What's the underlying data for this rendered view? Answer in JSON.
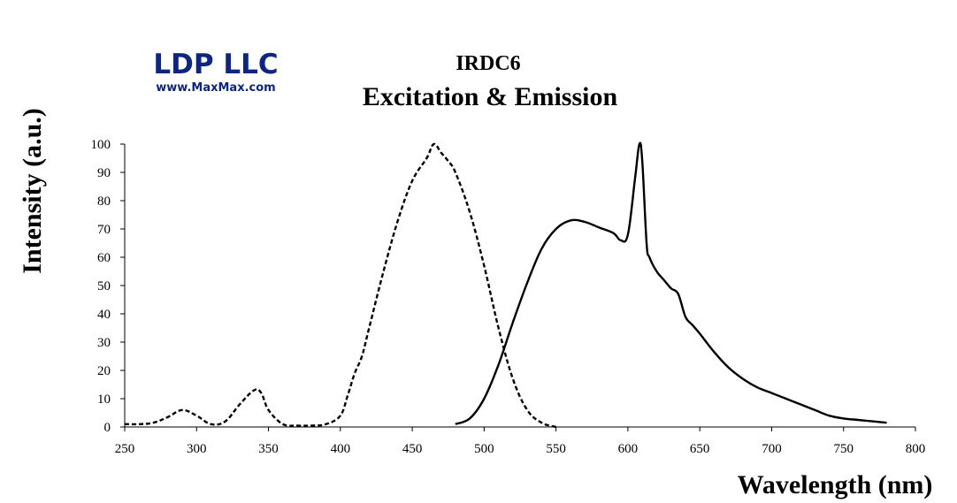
{
  "logo": {
    "name": "LDP LLC",
    "url": "www.MaxMax.com"
  },
  "colors": {
    "brand": "#0d2680",
    "line": "#000000"
  },
  "chart_data": {
    "type": "line",
    "title": "IRDC6",
    "subtitle": "Excitation & Emission",
    "xlabel": "Wavelength (nm)",
    "ylabel": "Intensity (a.u.)",
    "xlim": [
      250,
      800
    ],
    "ylim": [
      0,
      100
    ],
    "xticks": [
      250,
      300,
      350,
      400,
      450,
      500,
      550,
      600,
      650,
      700,
      750,
      800
    ],
    "yticks": [
      0,
      10,
      20,
      30,
      40,
      50,
      60,
      70,
      80,
      90,
      100
    ],
    "grid": false,
    "legend": "none",
    "series": [
      {
        "style": "dashed",
        "x": [
          250,
          260,
          270,
          280,
          290,
          300,
          310,
          320,
          330,
          340,
          345,
          350,
          360,
          370,
          380,
          390,
          400,
          405,
          410,
          415,
          420,
          430,
          440,
          450,
          460,
          465,
          470,
          475,
          480,
          490,
          500,
          510,
          520,
          530,
          540,
          550
        ],
        "y": [
          1,
          1,
          1.5,
          3.5,
          6,
          4,
          1,
          2,
          8,
          13,
          12,
          6,
          1,
          0.5,
          0.5,
          1,
          4,
          11,
          19,
          25,
          35,
          55,
          73,
          87,
          95,
          100,
          97,
          94,
          90,
          76,
          57,
          35,
          17,
          6,
          1.5,
          0
        ]
      },
      {
        "style": "solid",
        "x": [
          480,
          490,
          500,
          510,
          520,
          530,
          540,
          550,
          560,
          570,
          580,
          590,
          595,
          600,
          605,
          608,
          610,
          613,
          615,
          620,
          625,
          630,
          635,
          640,
          645,
          650,
          660,
          670,
          680,
          690,
          700,
          710,
          720,
          730,
          740,
          750,
          760,
          770,
          780
        ],
        "y": [
          1,
          3,
          10,
          22,
          37,
          51,
          63,
          70,
          73,
          72.5,
          70.5,
          68.5,
          66,
          68,
          88,
          100,
          94,
          65,
          60,
          55,
          52,
          49,
          47,
          39,
          36,
          33,
          26.5,
          21,
          17,
          14,
          12,
          10,
          8,
          6,
          4,
          3,
          2.5,
          2,
          1.5
        ]
      }
    ]
  }
}
